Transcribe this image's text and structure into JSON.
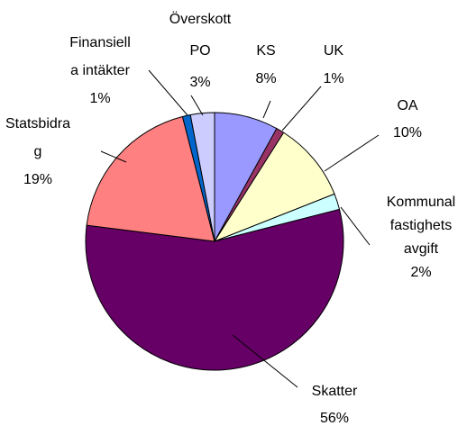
{
  "chart_data": {
    "type": "pie",
    "categories": [
      [
        "KS"
      ],
      [
        "UK"
      ],
      [
        "OA"
      ],
      [
        "Kommunal",
        "fastighets",
        "avgift"
      ],
      [
        "Skatter"
      ],
      [
        "Statsbidra",
        "g"
      ],
      [
        "Finansiell",
        "a intäkter"
      ],
      [
        "Överskott",
        "PO"
      ]
    ],
    "values": [
      8,
      1,
      10,
      2,
      56,
      19,
      1,
      3
    ],
    "value_labels": [
      "8%",
      "1%",
      "10%",
      "2%",
      "56%",
      "19%",
      "1%",
      "3%"
    ],
    "colors": [
      "#9999ff",
      "#993366",
      "#ffffcc",
      "#ccffff",
      "#660066",
      "#ff8080",
      "#0066cc",
      "#ccccff"
    ]
  }
}
